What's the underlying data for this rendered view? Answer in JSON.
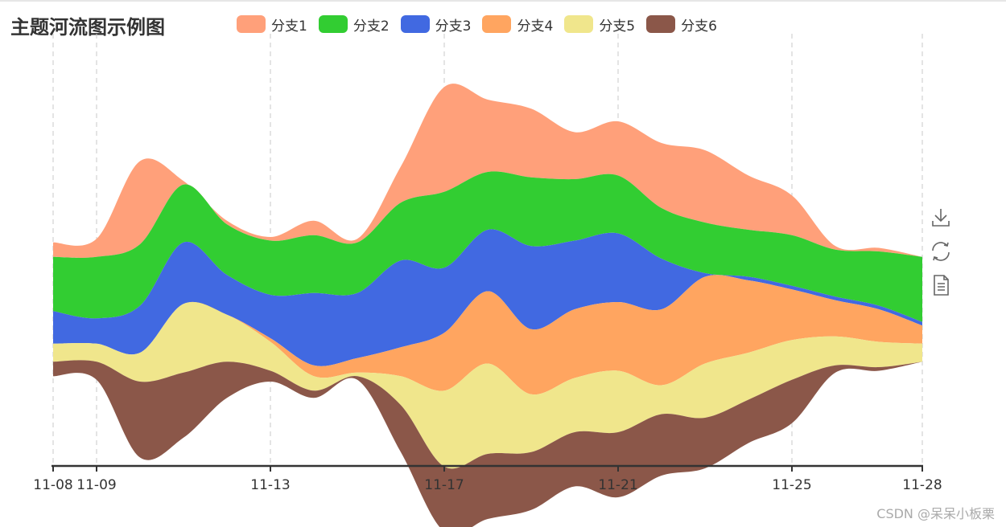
{
  "page": {
    "watermark": "CSDN @呆呆小板栗"
  },
  "colors": {
    "axis": "#333333",
    "splitline": "#c8c8c8",
    "background": "#ffffff",
    "toolbox_icon": "#666666"
  },
  "toolbox": {
    "items": [
      {
        "name": "save-as-image",
        "icon": "download-icon"
      },
      {
        "name": "restore",
        "icon": "refresh-icon"
      },
      {
        "name": "data-view",
        "icon": "document-icon"
      }
    ]
  },
  "chart_data": {
    "type": "themeRiver",
    "title": "主题河流图示例图",
    "x_dates": [
      "2023-11-08",
      "2023-11-09",
      "2023-11-10",
      "2023-11-11",
      "2023-11-12",
      "2023-11-13",
      "2023-11-14",
      "2023-11-15",
      "2023-11-16",
      "2023-11-17",
      "2023-11-18",
      "2023-11-19",
      "2023-11-20",
      "2023-11-21",
      "2023-11-22",
      "2023-11-23",
      "2023-11-24",
      "2023-11-25",
      "2023-11-26",
      "2023-11-27",
      "2023-11-28"
    ],
    "x_tick_labels": [
      "11-08",
      "11-09",
      "11-13",
      "11-17",
      "11-21",
      "11-25",
      "11-28"
    ],
    "x_tick_dates": [
      "2023-11-08",
      "2023-11-09",
      "2023-11-13",
      "2023-11-17",
      "2023-11-21",
      "2023-11-25",
      "2023-11-28"
    ],
    "series": [
      {
        "name": "分支1",
        "color": "#ffa07a",
        "values": [
          20,
          25,
          115,
          5,
          5,
          5,
          20,
          5,
          50,
          145,
          100,
          95,
          65,
          75,
          90,
          100,
          75,
          55,
          5,
          5,
          0
        ]
      },
      {
        "name": "分支2",
        "color": "#32cd32",
        "values": [
          75,
          85,
          85,
          80,
          70,
          75,
          80,
          70,
          80,
          105,
          80,
          95,
          85,
          80,
          70,
          70,
          65,
          70,
          65,
          75,
          90
        ]
      },
      {
        "name": "分支3",
        "color": "#4169e1",
        "values": [
          45,
          35,
          65,
          85,
          55,
          60,
          100,
          90,
          120,
          90,
          85,
          115,
          95,
          95,
          70,
          5,
          5,
          5,
          5,
          5,
          5
        ]
      },
      {
        "name": "分支4",
        "color": "#ffa560",
        "values": [
          0,
          0,
          0,
          0,
          0,
          5,
          15,
          20,
          40,
          80,
          100,
          90,
          95,
          95,
          105,
          120,
          100,
          70,
          50,
          45,
          25
        ]
      },
      {
        "name": "分支5",
        "color": "#f0e68c",
        "values": [
          25,
          25,
          40,
          95,
          65,
          40,
          20,
          5,
          40,
          105,
          125,
          80,
          75,
          85,
          40,
          75,
          65,
          55,
          40,
          35,
          25
        ]
      },
      {
        "name": "分支6",
        "color": "#8b5749",
        "values": [
          20,
          25,
          105,
          90,
          50,
          15,
          10,
          5,
          65,
          90,
          90,
          80,
          75,
          90,
          85,
          70,
          60,
          60,
          10,
          5,
          0
        ]
      }
    ]
  }
}
